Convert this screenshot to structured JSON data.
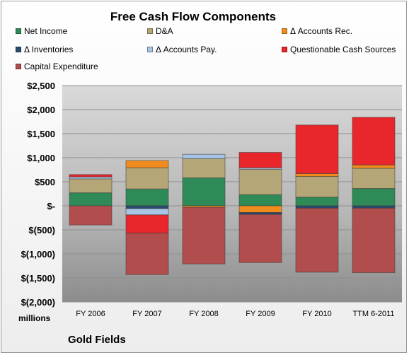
{
  "chart_data": {
    "type": "bar",
    "stacked": true,
    "title": "Free Cash Flow Components",
    "units_label": "millions",
    "company": "Gold Fields",
    "categories": [
      "FY 2006",
      "FY 2007",
      "FY 2008",
      "FY 2009",
      "FY 2010",
      "TTM 6-2011"
    ],
    "ylim": [
      -2000,
      2500
    ],
    "yticks": [
      2500,
      2000,
      1500,
      1000,
      500,
      0,
      -500,
      -1000,
      -1500,
      -2000
    ],
    "ytick_labels": [
      "$2,500",
      "$2,000",
      "$1,500",
      "$1,000",
      "$500",
      "$-",
      "$(500)",
      "$(1,000)",
      "$(1,500)",
      "$(2,000)"
    ],
    "grid": true,
    "legend_position": "top",
    "series": [
      {
        "name": "Net Income",
        "color": "#2e8b57",
        "values": [
          270,
          350,
          580,
          230,
          180,
          360
        ]
      },
      {
        "name": "D&A",
        "color": "#b5a677",
        "values": [
          290,
          440,
          400,
          530,
          430,
          420
        ]
      },
      {
        "name": "Δ Accounts Rec.",
        "color": "#f08c1e",
        "values": [
          0,
          150,
          -30,
          -140,
          60,
          70
        ]
      },
      {
        "name": "Δ Inventories",
        "color": "#2b4a6f",
        "values": [
          0,
          -60,
          0,
          -40,
          -50,
          -50
        ]
      },
      {
        "name": "Δ Accounts Pay.",
        "color": "#a9c4e4",
        "values": [
          40,
          -130,
          90,
          30,
          0,
          0
        ]
      },
      {
        "name": "Questionable Cash Sources",
        "color": "#e8262b",
        "values": [
          50,
          -380,
          0,
          320,
          1010,
          990
        ]
      },
      {
        "name": "Capital Expenditure",
        "color": "#b14d4d",
        "values": [
          -400,
          -860,
          -1180,
          -1000,
          -1330,
          -1340
        ]
      }
    ]
  }
}
